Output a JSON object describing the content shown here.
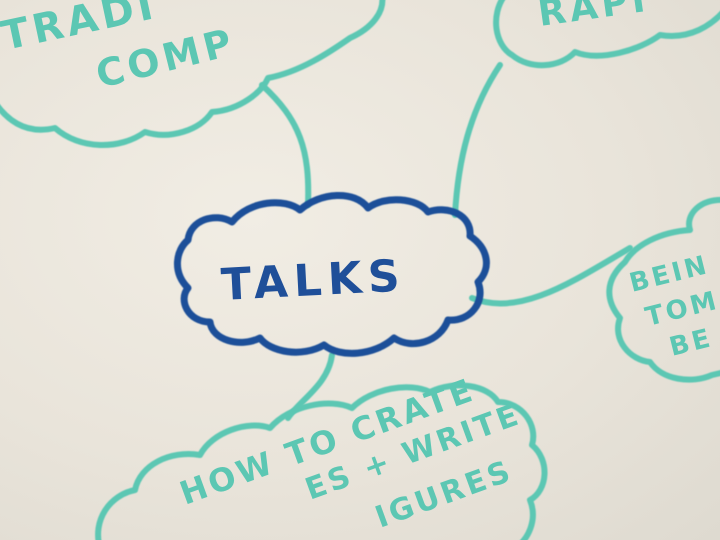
{
  "colors": {
    "board": "#ece8df",
    "central_marker": "#1f4f99",
    "branch_marker": "#5cc7b3"
  },
  "mindmap": {
    "central": {
      "label": "TALKS"
    },
    "nodes": [
      {
        "id": "top-left",
        "lines": [
          "TRADI",
          "COMP"
        ]
      },
      {
        "id": "top-right",
        "lines": [
          "RAPI"
        ]
      },
      {
        "id": "right",
        "lines": [
          "BEIN",
          "TOM",
          "BE"
        ]
      },
      {
        "id": "bottom",
        "lines": [
          "HOW TO CRATE",
          "ES + WRITE",
          "IGURES"
        ]
      }
    ]
  }
}
